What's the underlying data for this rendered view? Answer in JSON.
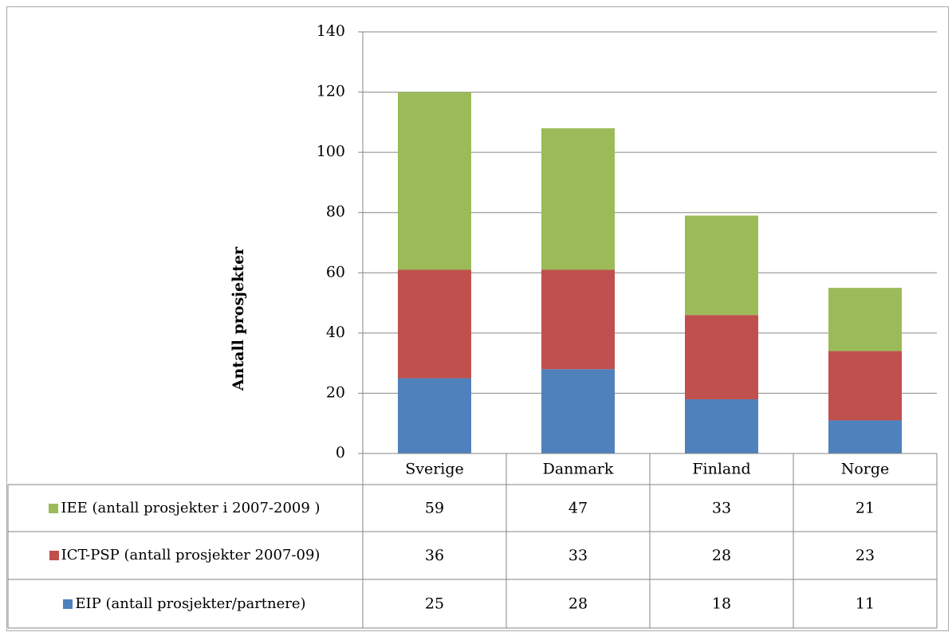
{
  "chart_data": {
    "type": "stacked_bar",
    "y_label": "Antall prosjekter",
    "categories": [
      "Sverige",
      "Danmark",
      "Finland",
      "Norge"
    ],
    "series": [
      {
        "name": "EIP (antall prosjekter/partnere)",
        "color": "#4f81bd",
        "values": [
          25,
          28,
          18,
          11
        ]
      },
      {
        "name": "ICT-PSP (antall prosjekter 2007-09)",
        "color": "#c0504d",
        "values": [
          36,
          33,
          28,
          23
        ]
      },
      {
        "name": "IEE  (antall prosjekter i 2007-2009 )",
        "color": "#9bbb59",
        "values": [
          59,
          47,
          33,
          21
        ]
      }
    ],
    "ylim": [
      0,
      140
    ],
    "yticks": [
      0,
      20,
      40,
      60,
      80,
      100,
      120,
      140
    ],
    "grid": true,
    "data_table": true
  }
}
